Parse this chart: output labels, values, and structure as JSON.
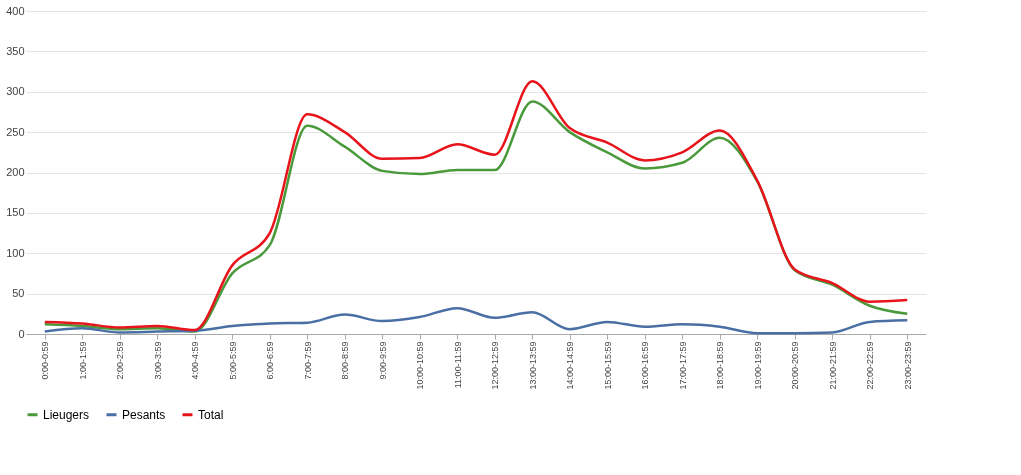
{
  "chart_data": {
    "type": "line",
    "categories": [
      "0:00-0:59",
      "1:00-1:59",
      "2:00-2:59",
      "3:00-3:59",
      "4:00-4:59",
      "5:00-5:59",
      "6:00-6:59",
      "7:00-7:59",
      "8:00-8:59",
      "9:00-9:59",
      "10:00-10:59",
      "11:00-11:59",
      "12:00-12:59",
      "13:00-13:59",
      "14:00-14:59",
      "15:00-15:59",
      "16:00-16:59",
      "17:00-17:59",
      "18:00-18:59",
      "19:00-19:59",
      "20:00-20:59",
      "21:00-21:59",
      "22:00-22:59",
      "23:00-23:59"
    ],
    "series": [
      {
        "name": "Lieugers",
        "color": "#4a9a3c",
        "values": [
          12,
          10,
          6,
          7,
          3,
          75,
          110,
          258,
          232,
          202,
          198,
          203,
          203,
          288,
          250,
          225,
          205,
          212,
          243,
          189,
          79,
          61,
          35,
          25
        ]
      },
      {
        "name": "Pesants",
        "color": "#4a6fa5",
        "values": [
          3,
          7,
          2,
          3,
          4,
          10,
          13,
          14,
          24,
          16,
          21,
          32,
          20,
          27,
          6,
          15,
          9,
          12,
          9,
          1,
          1,
          2,
          15,
          17
        ]
      },
      {
        "name": "Total",
        "color": "#e8141c",
        "values": [
          15,
          13,
          8,
          10,
          5,
          85,
          125,
          272,
          250,
          217,
          218,
          235,
          222,
          313,
          255,
          237,
          215,
          225,
          252,
          190,
          80,
          63,
          40,
          42
        ]
      }
    ],
    "ylim": [
      0,
      400
    ],
    "yticks": [
      0,
      50,
      100,
      150,
      200,
      250,
      300,
      350,
      400
    ],
    "grid": "y",
    "legend": "bottom",
    "marker": "none",
    "line_style": "solid"
  }
}
